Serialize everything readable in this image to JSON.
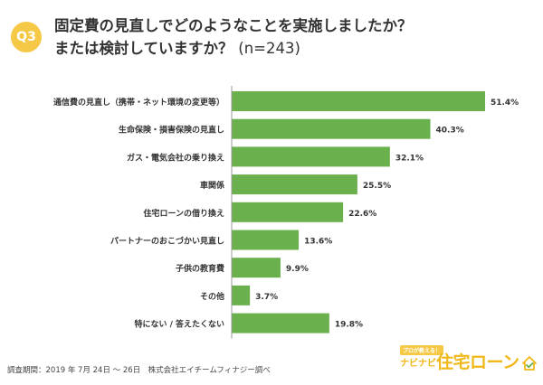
{
  "header": {
    "badge": "Q3",
    "title_line1": "固定費の見直しでどのようなことを実施しましたか？",
    "title_line2": "または検討していますか？",
    "sample": "(n=243)"
  },
  "chart_data": {
    "type": "bar",
    "orientation": "horizontal",
    "categories": [
      "通信費の見直し（携帯・ネット環境の変更等）",
      "生命保険・損害保険の見直し",
      "ガス・電気会社の乗り換え",
      "車関係",
      "住宅ローンの借り換え",
      "パートナーのおこづかい見直し",
      "子供の教育費",
      "その他",
      "特にない / 答えたくない"
    ],
    "values": [
      51.4,
      40.3,
      32.1,
      25.5,
      22.6,
      13.6,
      9.9,
      3.7,
      19.8
    ],
    "value_labels": [
      "51.4%",
      "40.3%",
      "32.1%",
      "25.5%",
      "22.6%",
      "13.6%",
      "9.9%",
      "3.7%",
      "19.8%"
    ],
    "unit": "%",
    "xlim": [
      0,
      55
    ],
    "grid": false,
    "bar_color": "#6ab04c"
  },
  "footnote": "調査期間：2019 年 7月 24日 〜 26日　株式会社エイチームフィナジー調べ",
  "logo": {
    "tag": "プロが教える！",
    "sub": "ナビナビ",
    "main": "住宅ローン",
    "icon": "house-check-icon",
    "color": "#f0b818"
  },
  "colors": {
    "badge": "#f5c945",
    "axis": "#999999"
  }
}
